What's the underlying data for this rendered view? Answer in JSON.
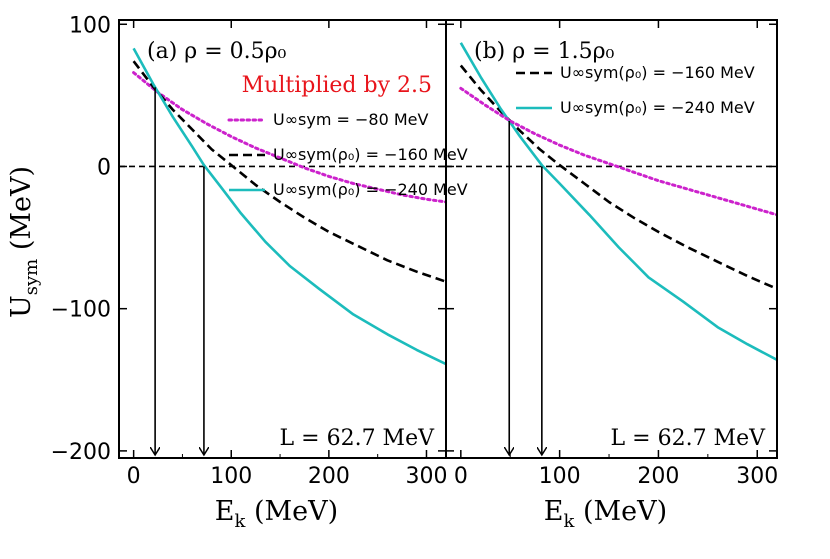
{
  "chart_data": [
    {
      "type": "line",
      "panel_label": "(a) ρ = 0.5ρ₀",
      "annotation": "Multiplied by 2.5",
      "annotation_color": "#e8141b",
      "l_value": "L = 62.7 MeV",
      "xlabel": "E_k (MeV)",
      "ylabel": "U_sym (MeV)",
      "xlim": [
        -15,
        320
      ],
      "ylim": [
        -205,
        103
      ],
      "xticks": [
        0,
        100,
        200,
        300
      ],
      "yticks": [
        -200,
        -100,
        0,
        100
      ],
      "xtick_labels": [
        "0",
        "100",
        "200",
        "300"
      ],
      "ytick_labels": [
        "−200",
        "−100",
        "0",
        "100"
      ],
      "reference_line_y": 0,
      "legend_position": "upper-right",
      "arrows_x": [
        22,
        72
      ],
      "series": [
        {
          "name": "U∞sym = −80 MeV",
          "color": "#cc22cc",
          "style": "dotted",
          "x": [
            0,
            25,
            50,
            75,
            100,
            125,
            150,
            175,
            200,
            225,
            250,
            275,
            300,
            320
          ],
          "y": [
            66,
            52,
            40,
            30,
            21,
            13,
            6,
            -1,
            -7,
            -12,
            -16,
            -20,
            -23,
            -25
          ]
        },
        {
          "name": "U∞sym(ρ₀) = −160 MeV",
          "color": "#000000",
          "style": "dashed",
          "x": [
            0,
            20,
            40,
            60,
            80,
            100,
            125,
            150,
            175,
            200,
            230,
            260,
            290,
            320
          ],
          "y": [
            74,
            56,
            40,
            26,
            12,
            1,
            -13,
            -25,
            -36,
            -46,
            -56,
            -66,
            -74,
            -81
          ]
        },
        {
          "name": "U∞sym(ρ₀) = −240 MeV",
          "color": "#1cbcbc",
          "style": "solid",
          "x": [
            0,
            20,
            40,
            60,
            72,
            90,
            110,
            135,
            160,
            190,
            225,
            260,
            290,
            320
          ],
          "y": [
            83,
            58,
            35,
            14,
            1,
            -15,
            -33,
            -53,
            -70,
            -86,
            -104,
            -118,
            -129,
            -139
          ]
        }
      ]
    },
    {
      "type": "line",
      "panel_label": "(b) ρ = 1.5ρ₀",
      "l_value": "L = 62.7 MeV",
      "xlabel": "E_k (MeV)",
      "xlim": [
        -15,
        320
      ],
      "ylim": [
        -205,
        103
      ],
      "xticks": [
        0,
        100,
        200,
        300
      ],
      "xtick_labels": [
        "0",
        "100",
        "200",
        "300"
      ],
      "reference_line_y": 0,
      "legend_position": "upper-right",
      "arrows_x": [
        49,
        82
      ],
      "series": [
        {
          "name": "U∞sym(ρ₀) = −160 MeV",
          "color": "#000000",
          "style": "dashed",
          "x": [
            0,
            20,
            40,
            60,
            80,
            100,
            125,
            150,
            175,
            200,
            230,
            260,
            290,
            320
          ],
          "y": [
            71,
            54,
            39,
            25,
            12,
            1,
            -12,
            -25,
            -36,
            -46,
            -57,
            -67,
            -77,
            -86
          ]
        },
        {
          "name": "U∞sym(ρ₀) = −240 MeV",
          "color": "#1cbcbc",
          "style": "solid",
          "x": [
            0,
            20,
            40,
            60,
            82,
            100,
            130,
            160,
            190,
            225,
            260,
            290,
            320
          ],
          "y": [
            87,
            63,
            41,
            21,
            1,
            -12,
            -34,
            -57,
            -78,
            -95,
            -113,
            -125,
            -136
          ]
        },
        {
          "name": "",
          "color": "#cc22cc",
          "style": "dotted",
          "x": [
            0,
            25,
            50,
            75,
            100,
            125,
            150,
            175,
            200,
            225,
            250,
            275,
            300,
            320
          ],
          "y": [
            55,
            43,
            32,
            23,
            15,
            8,
            2,
            -4,
            -10,
            -15,
            -20,
            -25,
            -30,
            -34
          ]
        }
      ]
    }
  ]
}
